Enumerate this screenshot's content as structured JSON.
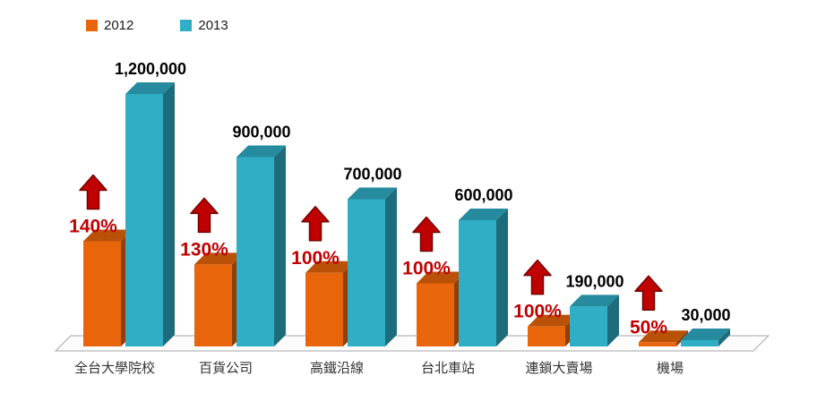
{
  "legend": {
    "items": [
      {
        "label": "2012",
        "color": "#E8650B"
      },
      {
        "label": "2013",
        "color": "#2FAEC6"
      }
    ]
  },
  "chart_data": {
    "type": "bar",
    "style": "3d-clustered-column",
    "title": "",
    "categories": [
      "全台大學院校",
      "百貨公司",
      "高鐵沿線",
      "台北車站",
      "連鎖大賣場",
      "機場"
    ],
    "series": [
      {
        "name": "2012",
        "color": "#E8650B",
        "values": [
          500000,
          390000,
          350000,
          300000,
          95000,
          20000
        ],
        "estimated": true
      },
      {
        "name": "2013",
        "color": "#2FAEC6",
        "values": [
          1200000,
          900000,
          700000,
          600000,
          190000,
          30000
        ],
        "estimated": false
      }
    ],
    "value_labels": [
      "1,200,000",
      "900,000",
      "700,000",
      "600,000",
      "190,000",
      "30,000"
    ],
    "growth_labels": [
      "140%",
      "130%",
      "100%",
      "100%",
      "100%",
      "50%"
    ],
    "growth_arrow_color": "#C00000",
    "value_label_color": "#000000",
    "category_label_color": "#333333",
    "floor_fill": "#FCFCFC",
    "floor_stroke": "#A6A6A6",
    "ylim": [
      0,
      1200000
    ],
    "grid": false,
    "legend_position": "top-left"
  }
}
